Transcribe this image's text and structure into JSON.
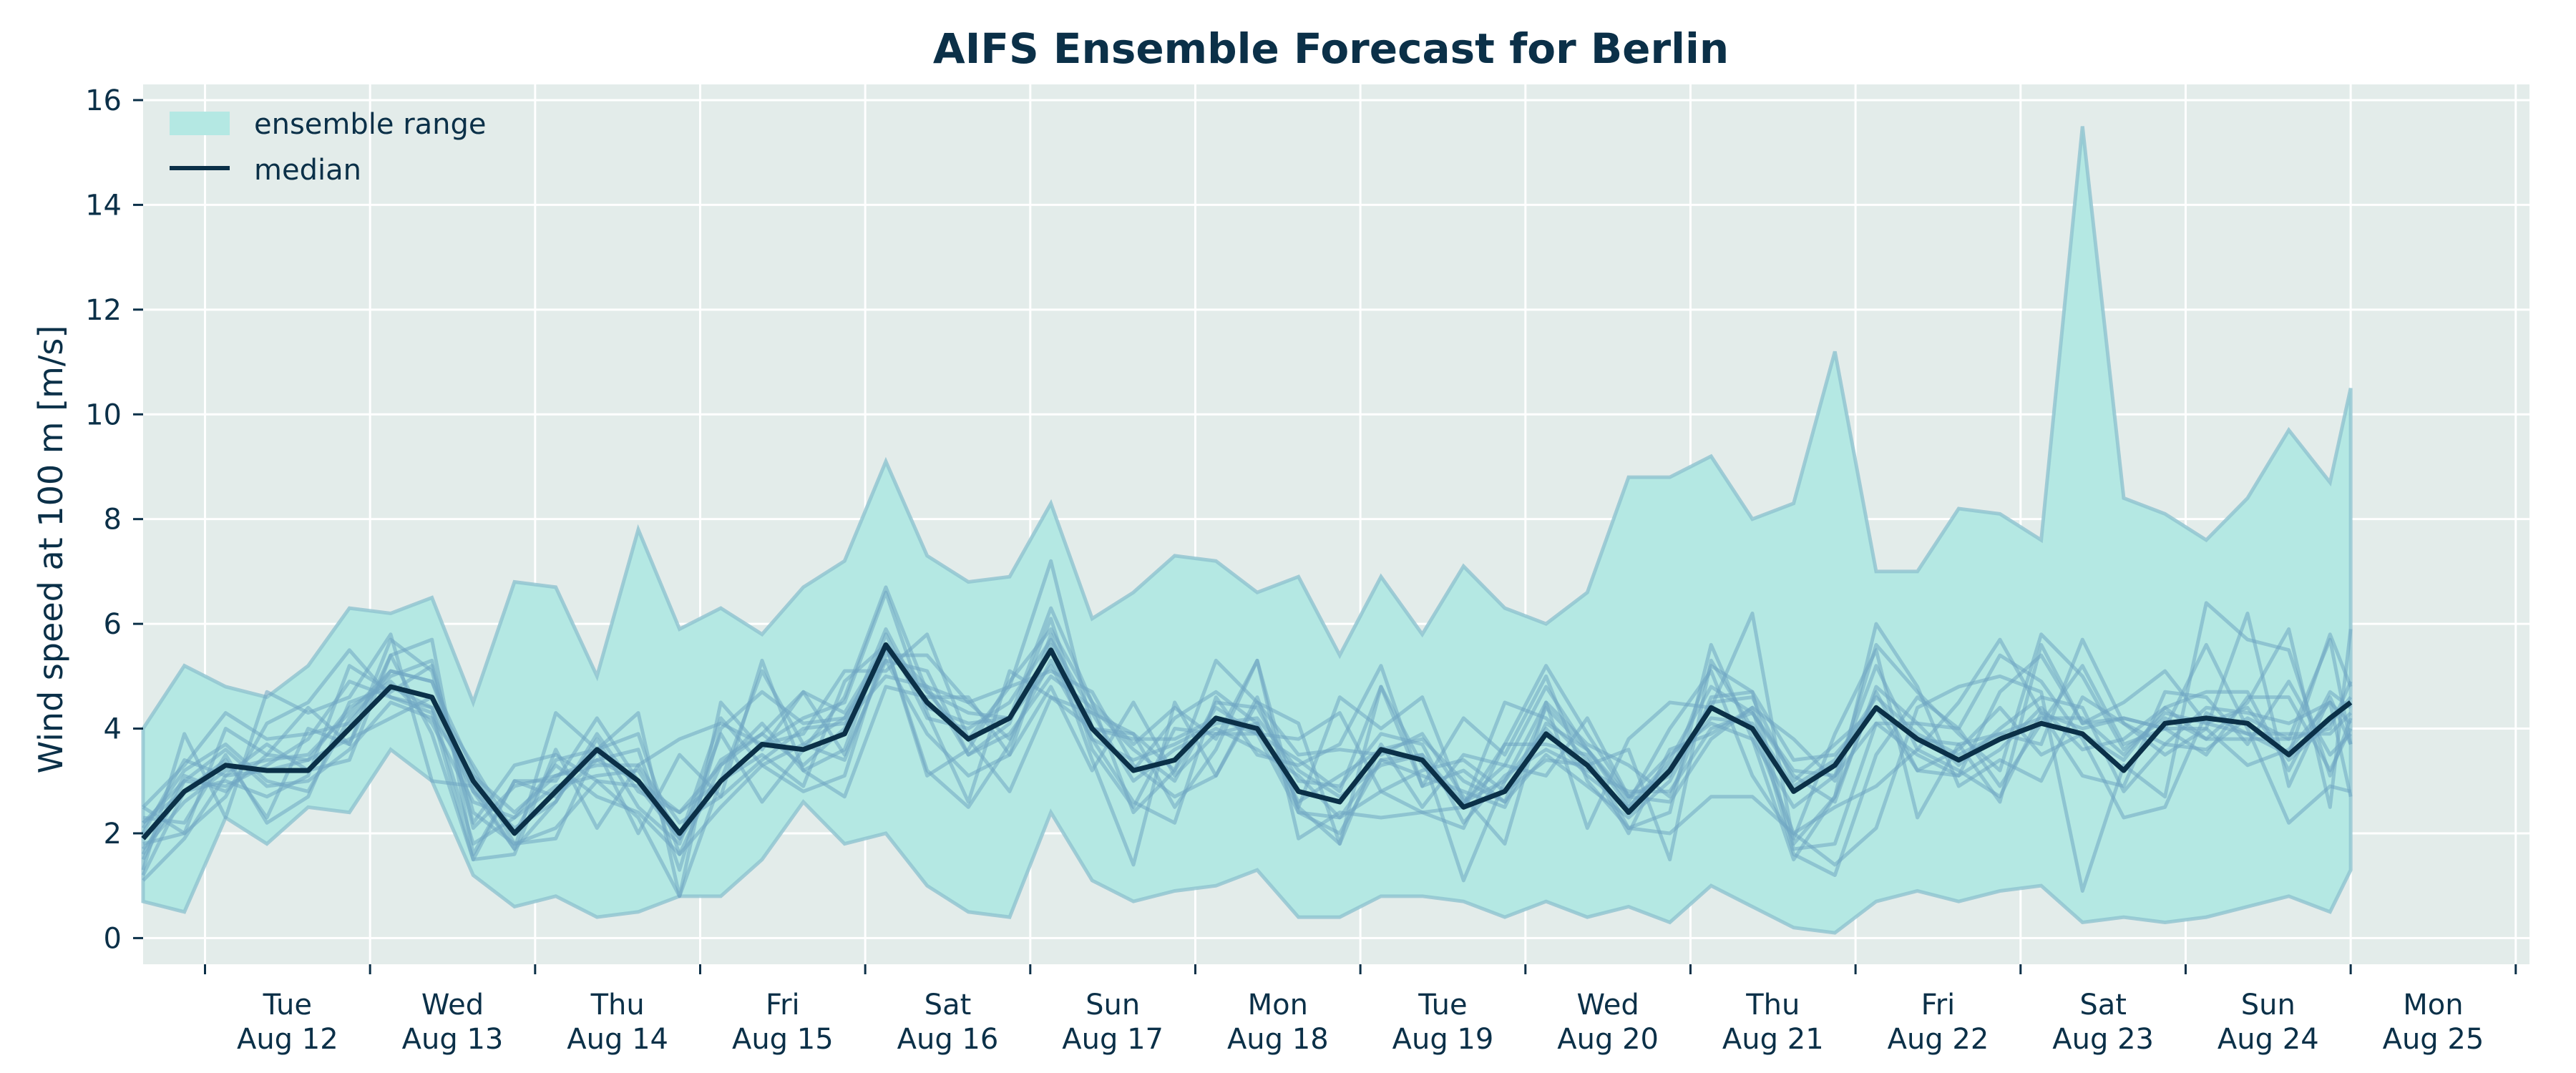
{
  "chart_data": {
    "type": "line",
    "title": "AIFS Ensemble Forecast for Berlin",
    "ylabel": "Wind speed at 100 m [m/s]",
    "xlabel": "",
    "ylim": [
      -0.5,
      16.3
    ],
    "yticks": [
      0,
      2,
      4,
      6,
      8,
      10,
      12,
      14,
      16
    ],
    "grid": true,
    "legend_position": "top-left",
    "x_unit": "hours since Aug 11 00:00",
    "xlim": [
      15,
      336
    ],
    "xticks": [
      {
        "x": 24,
        "day": "",
        "date": ""
      },
      {
        "x": 48,
        "day": "Tue",
        "date": "Aug 12"
      },
      {
        "x": 72,
        "day": "Wed",
        "date": "Aug 13"
      },
      {
        "x": 96,
        "day": "Thu",
        "date": "Aug 14"
      },
      {
        "x": 120,
        "day": "Fri",
        "date": "Aug 15"
      },
      {
        "x": 144,
        "day": "Sat",
        "date": "Aug 16"
      },
      {
        "x": 168,
        "day": "Sun",
        "date": "Aug 17"
      },
      {
        "x": 192,
        "day": "Mon",
        "date": "Aug 18"
      },
      {
        "x": 216,
        "day": "Tue",
        "date": "Aug 19"
      },
      {
        "x": 240,
        "day": "Wed",
        "date": "Aug 20"
      },
      {
        "x": 264,
        "day": "Thu",
        "date": "Aug 21"
      },
      {
        "x": 288,
        "day": "Fri",
        "date": "Aug 22"
      },
      {
        "x": 312,
        "day": "Sat",
        "date": "Aug 23"
      },
      {
        "x": 336,
        "day": "Sun",
        "date": "Aug 24"
      },
      {
        "x": 360,
        "day": "Mon",
        "date": "Aug 25"
      }
    ],
    "legend": [
      {
        "label": "ensemble range",
        "kind": "area"
      },
      {
        "label": "median",
        "kind": "line"
      }
    ],
    "colors": {
      "plot_bg": "#e3ecea",
      "range_fill": "#b4e8e3",
      "range_edge": "#8fc3cf",
      "member_line": "#6fa6c3",
      "median": "#0b3048",
      "grid": "#ffffff",
      "text": "#0b3048"
    },
    "median": {
      "name": "median",
      "x": [
        15,
        21,
        27,
        33,
        39,
        45,
        51,
        57,
        63,
        69,
        75,
        81,
        87,
        93,
        99,
        105,
        111,
        117,
        123,
        129,
        135,
        141,
        147,
        153,
        159,
        165,
        171,
        177,
        183,
        189,
        195,
        201,
        207,
        213,
        219,
        225,
        231,
        237,
        243,
        249,
        255,
        261,
        267,
        273,
        279,
        285,
        291,
        297,
        303,
        309,
        315,
        321,
        327,
        333,
        336
      ],
      "y": [
        1.9,
        2.8,
        3.3,
        3.2,
        3.2,
        4.0,
        4.8,
        4.6,
        3.0,
        2.0,
        2.8,
        3.6,
        3.0,
        2.0,
        3.0,
        3.7,
        3.6,
        3.9,
        5.6,
        4.5,
        3.8,
        4.2,
        5.5,
        4.0,
        3.2,
        3.4,
        4.2,
        4.0,
        2.8,
        2.6,
        3.6,
        3.4,
        2.5,
        2.8,
        3.9,
        3.3,
        2.4,
        3.2,
        4.4,
        4.0,
        2.8,
        3.3,
        4.4,
        3.8,
        3.4,
        3.8,
        4.1,
        3.9,
        3.2,
        4.1,
        4.2,
        4.1,
        3.5,
        4.2,
        4.5
      ]
    },
    "range_upper": {
      "x": [
        15,
        21,
        27,
        33,
        39,
        45,
        51,
        57,
        63,
        69,
        75,
        81,
        87,
        93,
        99,
        105,
        111,
        117,
        123,
        129,
        135,
        141,
        147,
        153,
        159,
        165,
        171,
        177,
        183,
        189,
        195,
        201,
        207,
        213,
        219,
        225,
        231,
        237,
        243,
        249,
        255,
        261,
        267,
        273,
        279,
        285,
        291,
        297,
        303,
        309,
        315,
        321,
        327,
        333,
        336
      ],
      "y": [
        4.0,
        5.2,
        4.8,
        4.6,
        5.2,
        6.3,
        6.2,
        6.5,
        4.5,
        6.8,
        6.7,
        5.0,
        7.8,
        5.9,
        6.3,
        5.8,
        6.7,
        7.2,
        9.1,
        7.3,
        6.8,
        6.9,
        8.3,
        6.1,
        6.6,
        7.3,
        7.2,
        6.6,
        6.9,
        5.4,
        6.9,
        5.8,
        7.1,
        6.3,
        6.0,
        6.6,
        8.8,
        8.8,
        9.2,
        8.0,
        8.3,
        11.2,
        7.0,
        7.0,
        8.2,
        8.1,
        7.6,
        15.5,
        8.4,
        8.1,
        7.6,
        8.4,
        9.7,
        8.7,
        10.5
      ]
    },
    "range_lower": {
      "x": [
        15,
        21,
        27,
        33,
        39,
        45,
        51,
        57,
        63,
        69,
        75,
        81,
        87,
        93,
        99,
        105,
        111,
        117,
        123,
        129,
        135,
        141,
        147,
        153,
        159,
        165,
        171,
        177,
        183,
        189,
        195,
        201,
        207,
        213,
        219,
        225,
        231,
        237,
        243,
        249,
        255,
        261,
        267,
        273,
        279,
        285,
        291,
        297,
        303,
        309,
        315,
        321,
        327,
        333,
        336
      ],
      "y": [
        0.7,
        0.5,
        2.3,
        1.8,
        2.5,
        2.4,
        3.6,
        3.0,
        1.2,
        0.6,
        0.8,
        0.4,
        0.5,
        0.8,
        0.8,
        1.5,
        2.6,
        1.8,
        2.0,
        1.0,
        0.5,
        0.4,
        2.4,
        1.1,
        0.7,
        0.9,
        1.0,
        1.3,
        0.4,
        0.4,
        0.8,
        0.8,
        0.7,
        0.4,
        0.7,
        0.4,
        0.6,
        0.3,
        1.0,
        0.6,
        0.2,
        0.1,
        0.7,
        0.9,
        0.7,
        0.9,
        1.0,
        0.3,
        0.4,
        0.3,
        0.4,
        0.6,
        0.8,
        0.5,
        1.3
      ]
    },
    "members": [
      {
        "y": [
          1.3,
          3.9,
          2.3,
          4.7,
          4.3,
          4.6,
          5.8,
          3.0,
          2.9,
          1.7,
          4.3,
          3.6,
          2.0,
          3.5,
          2.7,
          5.3,
          3.2,
          2.7,
          4.8,
          4.6,
          4.6,
          3.5,
          5.8,
          3.8,
          2.6,
          2.2,
          4.6,
          3.5,
          3.3,
          3.7,
          5.2,
          2.9,
          4.2,
          3.5,
          5.0,
          3.0,
          2.1,
          2.0,
          2.7,
          2.7,
          2.0,
          1.4,
          2.1,
          4.4,
          4.8,
          5.0,
          4.7,
          0.9,
          3.3,
          2.7,
          6.4,
          5.7,
          5.5,
          3.1,
          4.2
        ]
      },
      {
        "y": [
          2.5,
          2.0,
          2.7,
          4.1,
          4.5,
          5.5,
          4.6,
          4.3,
          1.5,
          1.6,
          3.6,
          2.1,
          3.3,
          3.8,
          4.1,
          3.7,
          3.9,
          5.1,
          5.1,
          5.8,
          3.8,
          2.8,
          4.6,
          4.3,
          3.9,
          3.2,
          5.3,
          4.5,
          4.1,
          1.8,
          3.7,
          2.5,
          3.5,
          3.3,
          4.8,
          3.6,
          2.6,
          4.0,
          5.1,
          3.1,
          1.9,
          3.9,
          5.5,
          2.3,
          3.7,
          2.6,
          5.6,
          4.1,
          4.5,
          5.1,
          4.1,
          3.9,
          3.5,
          5.8,
          4.8
        ]
      },
      {
        "y": [
          2.5,
          3.3,
          4.3,
          3.8,
          3.9,
          4.1,
          5.1,
          4.9,
          3.2,
          1.8,
          1.9,
          3.6,
          4.3,
          0.8,
          4.5,
          3.6,
          4.7,
          4.3,
          5.6,
          3.2,
          2.5,
          3.7,
          5.6,
          3.4,
          1.4,
          4.5,
          3.1,
          4.6,
          2.5,
          4.6,
          4.0,
          4.6,
          2.6,
          3.3,
          3.1,
          4.2,
          2.7,
          2.6,
          3.8,
          4.4,
          3.8,
          3.0,
          5.6,
          4.7,
          3.9,
          3.2,
          5.8,
          5.0,
          3.6,
          4.2,
          3.8,
          4.5,
          5.9,
          2.5,
          5.9
        ]
      },
      {
        "y": [
          1.2,
          2.8,
          3.4,
          2.3,
          4.0,
          3.7,
          5.7,
          5.1,
          2.2,
          3.3,
          3.5,
          3.0,
          2.3,
          0.8,
          3.0,
          3.5,
          2.9,
          4.9,
          5.6,
          4.8,
          4.5,
          4.8,
          7.2,
          4.0,
          3.9,
          2.5,
          3.6,
          5.3,
          2.4,
          2.0,
          3.4,
          3.5,
          1.1,
          3.0,
          4.5,
          3.7,
          3.3,
          2.7,
          4.6,
          4.7,
          1.7,
          1.8,
          4.1,
          4.1,
          4.0,
          2.9,
          4.1,
          5.2,
          3.7,
          4.0,
          5.6,
          4.0,
          2.2,
          2.9,
          2.8
        ]
      },
      {
        "y": [
          2.2,
          2.8,
          3.0,
          2.7,
          3.1,
          5.2,
          4.7,
          5.2,
          2.4,
          1.8,
          2.1,
          3.0,
          2.9,
          1.9,
          3.0,
          3.7,
          4.2,
          4.5,
          6.6,
          4.3,
          2.6,
          5.1,
          4.6,
          4.0,
          3.8,
          3.8,
          4.2,
          3.9,
          3.8,
          4.3,
          2.8,
          3.2,
          3.4,
          2.8,
          3.4,
          3.3,
          3.6,
          1.5,
          5.3,
          4.0,
          2.0,
          2.5,
          2.9,
          3.6,
          3.2,
          2.7,
          4.3,
          3.1,
          2.9,
          4.7,
          4.6,
          3.7,
          4.9,
          3.5,
          3.9
        ]
      },
      {
        "y": [
          1.5,
          3.0,
          2.9,
          3.3,
          3.8,
          4.9,
          4.6,
          4.4,
          2.8,
          2.1,
          2.6,
          3.8,
          2.5,
          1.8,
          3.9,
          2.6,
          3.6,
          4.6,
          6.7,
          4.7,
          4.3,
          4.2,
          6.3,
          4.5,
          3.7,
          4.4,
          3.8,
          5.3,
          1.9,
          2.4,
          2.3,
          2.4,
          2.5,
          4.5,
          4.2,
          3.4,
          2.0,
          3.6,
          3.9,
          4.4,
          1.6,
          1.2,
          3.5,
          4.6,
          4.0,
          5.4,
          4.9,
          3.8,
          2.3,
          2.5,
          4.3,
          3.9,
          3.9,
          3.9,
          4.3
        ]
      },
      {
        "y": [
          1.8,
          2.0,
          4.0,
          3.5,
          4.4,
          3.7,
          5.4,
          3.9,
          1.5,
          3.0,
          2.7,
          3.4,
          3.0,
          2.4,
          3.0,
          5.1,
          3.7,
          4.2,
          5.5,
          4.7,
          3.8,
          4.8,
          5.1,
          4.7,
          3.3,
          2.7,
          3.1,
          4.5,
          3.5,
          3.6,
          3.5,
          3.9,
          2.7,
          1.8,
          4.5,
          2.1,
          3.8,
          4.5,
          4.4,
          6.2,
          1.8,
          2.7,
          6.0,
          4.8,
          2.9,
          3.4,
          3.0,
          4.6,
          4.1,
          3.5,
          4.0,
          3.3,
          3.6,
          4.5,
          2.7
        ]
      },
      {
        "y": [
          1.1,
          1.9,
          3.1,
          3.7,
          3.2,
          3.4,
          5.4,
          5.7,
          1.6,
          3.0,
          3.0,
          4.2,
          3.0,
          1.9,
          4.2,
          3.3,
          2.8,
          3.1,
          5.6,
          3.1,
          3.6,
          4.9,
          5.9,
          4.5,
          2.4,
          3.2,
          4.4,
          3.9,
          3.4,
          2.8,
          4.8,
          3.3,
          2.5,
          3.7,
          5.2,
          3.9,
          2.7,
          3.1,
          5.2,
          4.7,
          3.4,
          3.5,
          4.4,
          3.8,
          3.7,
          3.9,
          3.7,
          5.7,
          4.1,
          3.7,
          3.6,
          4.2,
          3.8,
          5.7,
          3.7
        ]
      },
      {
        "y": [
          2.3,
          2.2,
          3.5,
          2.2,
          2.7,
          4.5,
          4.8,
          4.4,
          1.8,
          2.3,
          3.3,
          2.7,
          2.4,
          1.6,
          3.3,
          3.9,
          4.7,
          3.5,
          5.3,
          5.1,
          3.5,
          4.1,
          6.1,
          3.6,
          2.5,
          4.0,
          3.9,
          3.9,
          2.4,
          2.3,
          2.8,
          2.4,
          2.1,
          3.7,
          3.7,
          3.5,
          2.1,
          2.4,
          5.6,
          3.8,
          1.5,
          2.7,
          4.7,
          3.2,
          3.1,
          4.7,
          5.4,
          4.1,
          4.2,
          4.0,
          4.0,
          6.2,
          2.9,
          4.6,
          3.7
        ]
      },
      {
        "y": [
          2.1,
          3.2,
          3.7,
          3.0,
          2.8,
          4.2,
          5.0,
          5.3,
          2.1,
          2.9,
          3.1,
          3.4,
          3.6,
          1.3,
          4.0,
          4.7,
          4.1,
          4.2,
          5.3,
          3.9,
          3.1,
          3.5,
          4.8,
          3.2,
          4.5,
          3.1,
          3.9,
          4.1,
          2.5,
          1.8,
          4.8,
          2.9,
          3.2,
          2.6,
          4.4,
          3.6,
          2.5,
          3.4,
          4.8,
          4.3,
          3.2,
          3.1,
          5.2,
          3.6,
          4.5,
          5.7,
          4.3,
          4.0,
          4.2,
          4.0,
          3.5,
          4.6,
          4.6,
          3.2,
          4.0
        ]
      },
      {
        "y": [
          2.0,
          3.4,
          3.1,
          3.2,
          3.4,
          3.8,
          4.2,
          4.6,
          3.3,
          2.0,
          3.4,
          3.6,
          3.9,
          1.6,
          2.5,
          3.3,
          3.7,
          3.4,
          5.4,
          5.4,
          4.5,
          3.8,
          5.3,
          4.0,
          3.2,
          4.2,
          4.7,
          4.1,
          2.6,
          3.1,
          3.6,
          3.8,
          3.0,
          2.6,
          3.5,
          2.9,
          2.3,
          3.0,
          4.5,
          4.6,
          3.0,
          3.7,
          4.4,
          3.2,
          3.6,
          4.4,
          3.5,
          3.9,
          3.4,
          4.4,
          4.7,
          4.7,
          3.2,
          4.7,
          4.4
        ]
      },
      {
        "y": [
          1.7,
          2.6,
          3.2,
          3.4,
          3.5,
          4.3,
          5.1,
          4.9,
          2.8,
          1.7,
          2.6,
          3.9,
          2.8,
          2.4,
          3.3,
          4.1,
          3.2,
          3.6,
          5.8,
          4.2,
          4.0,
          4.5,
          5.7,
          4.3,
          3.0,
          3.6,
          4.0,
          3.6,
          3.1,
          2.3,
          3.4,
          3.1,
          2.8,
          2.5,
          4.1,
          3.6,
          2.7,
          3.5,
          4.1,
          3.8,
          2.5,
          3.1,
          4.1,
          3.5,
          3.1,
          3.6,
          4.4,
          3.6,
          3.8,
          4.4,
          3.8,
          3.8,
          3.8,
          4.0,
          4.9
        ]
      },
      {
        "y": [
          2.2,
          3.0,
          3.6,
          2.9,
          3.0,
          3.6,
          4.5,
          4.2,
          3.1,
          2.4,
          3.1,
          3.3,
          3.3,
          2.2,
          2.7,
          3.4,
          4.0,
          4.1,
          5.0,
          4.8,
          3.5,
          3.9,
          5.0,
          4.4,
          3.6,
          3.0,
          4.5,
          4.4,
          3.0,
          2.9,
          3.9,
          3.7,
          2.2,
          3.1,
          3.6,
          3.2,
          2.8,
          2.8,
          4.0,
          4.3,
          3.1,
          2.6,
          4.8,
          4.1,
          3.3,
          4.0,
          4.6,
          4.4,
          2.8,
          3.7,
          4.4,
          4.3,
          4.1,
          4.5,
          4.1
        ]
      },
      {
        "y": [
          1.6,
          3.1,
          2.8,
          3.5,
          3.4,
          4.4,
          4.9,
          4.1,
          2.6,
          2.3,
          2.9,
          3.1,
          3.2,
          2.0,
          3.4,
          3.9,
          3.3,
          4.0,
          5.9,
          4.4,
          4.1,
          4.2,
          5.2,
          3.8,
          3.4,
          3.7,
          4.1,
          4.2,
          3.2,
          2.7,
          3.3,
          3.5,
          2.6,
          3.0,
          4.0,
          3.1,
          2.5,
          3.3,
          4.2,
          4.1,
          2.9,
          3.4,
          4.6,
          3.9,
          3.5,
          3.9,
          4.2,
          4.2,
          3.5,
          4.3,
          4.1,
          4.4,
          3.4,
          4.1,
          4.6
        ]
      }
    ]
  }
}
